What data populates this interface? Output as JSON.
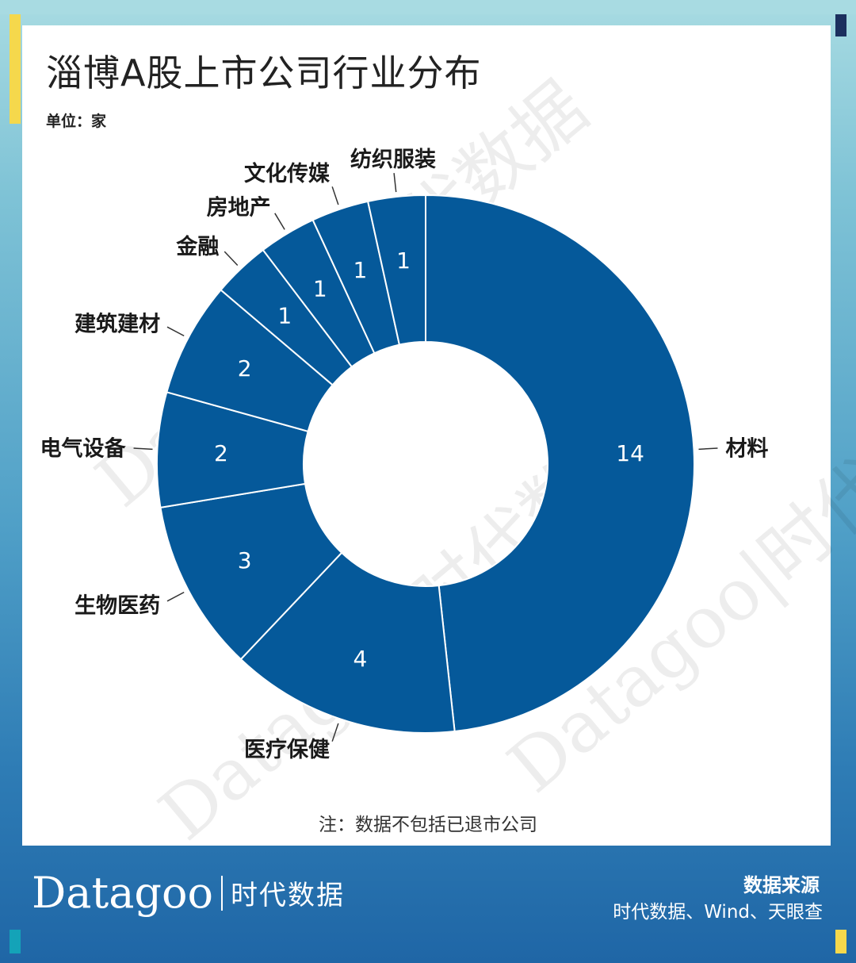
{
  "title": "淄博A股上市公司行业分布",
  "unit": "单位：家",
  "note": "注：数据不包括已退市公司",
  "brand": {
    "en": "Datagoo",
    "cn": "时代数据"
  },
  "source": {
    "title": "数据来源",
    "text": "时代数据、Wind、天眼查"
  },
  "watermark": "Datagoo|时代数据",
  "colors": {
    "slice": "#05599a",
    "frame_top": "#a8dbe2",
    "frame_bottom": "#1f66a6",
    "accent_yellow": "#f5d84c"
  },
  "chart_data": {
    "type": "pie",
    "donut": true,
    "categories": [
      "材料",
      "医疗保健",
      "生物医药",
      "电气设备",
      "建筑建材",
      "金融",
      "房地产",
      "文化传媒",
      "纺织服装"
    ],
    "values": [
      14,
      4,
      3,
      2,
      2,
      1,
      1,
      1,
      1
    ],
    "unit": "家",
    "start": "top",
    "direction": "clockwise"
  }
}
